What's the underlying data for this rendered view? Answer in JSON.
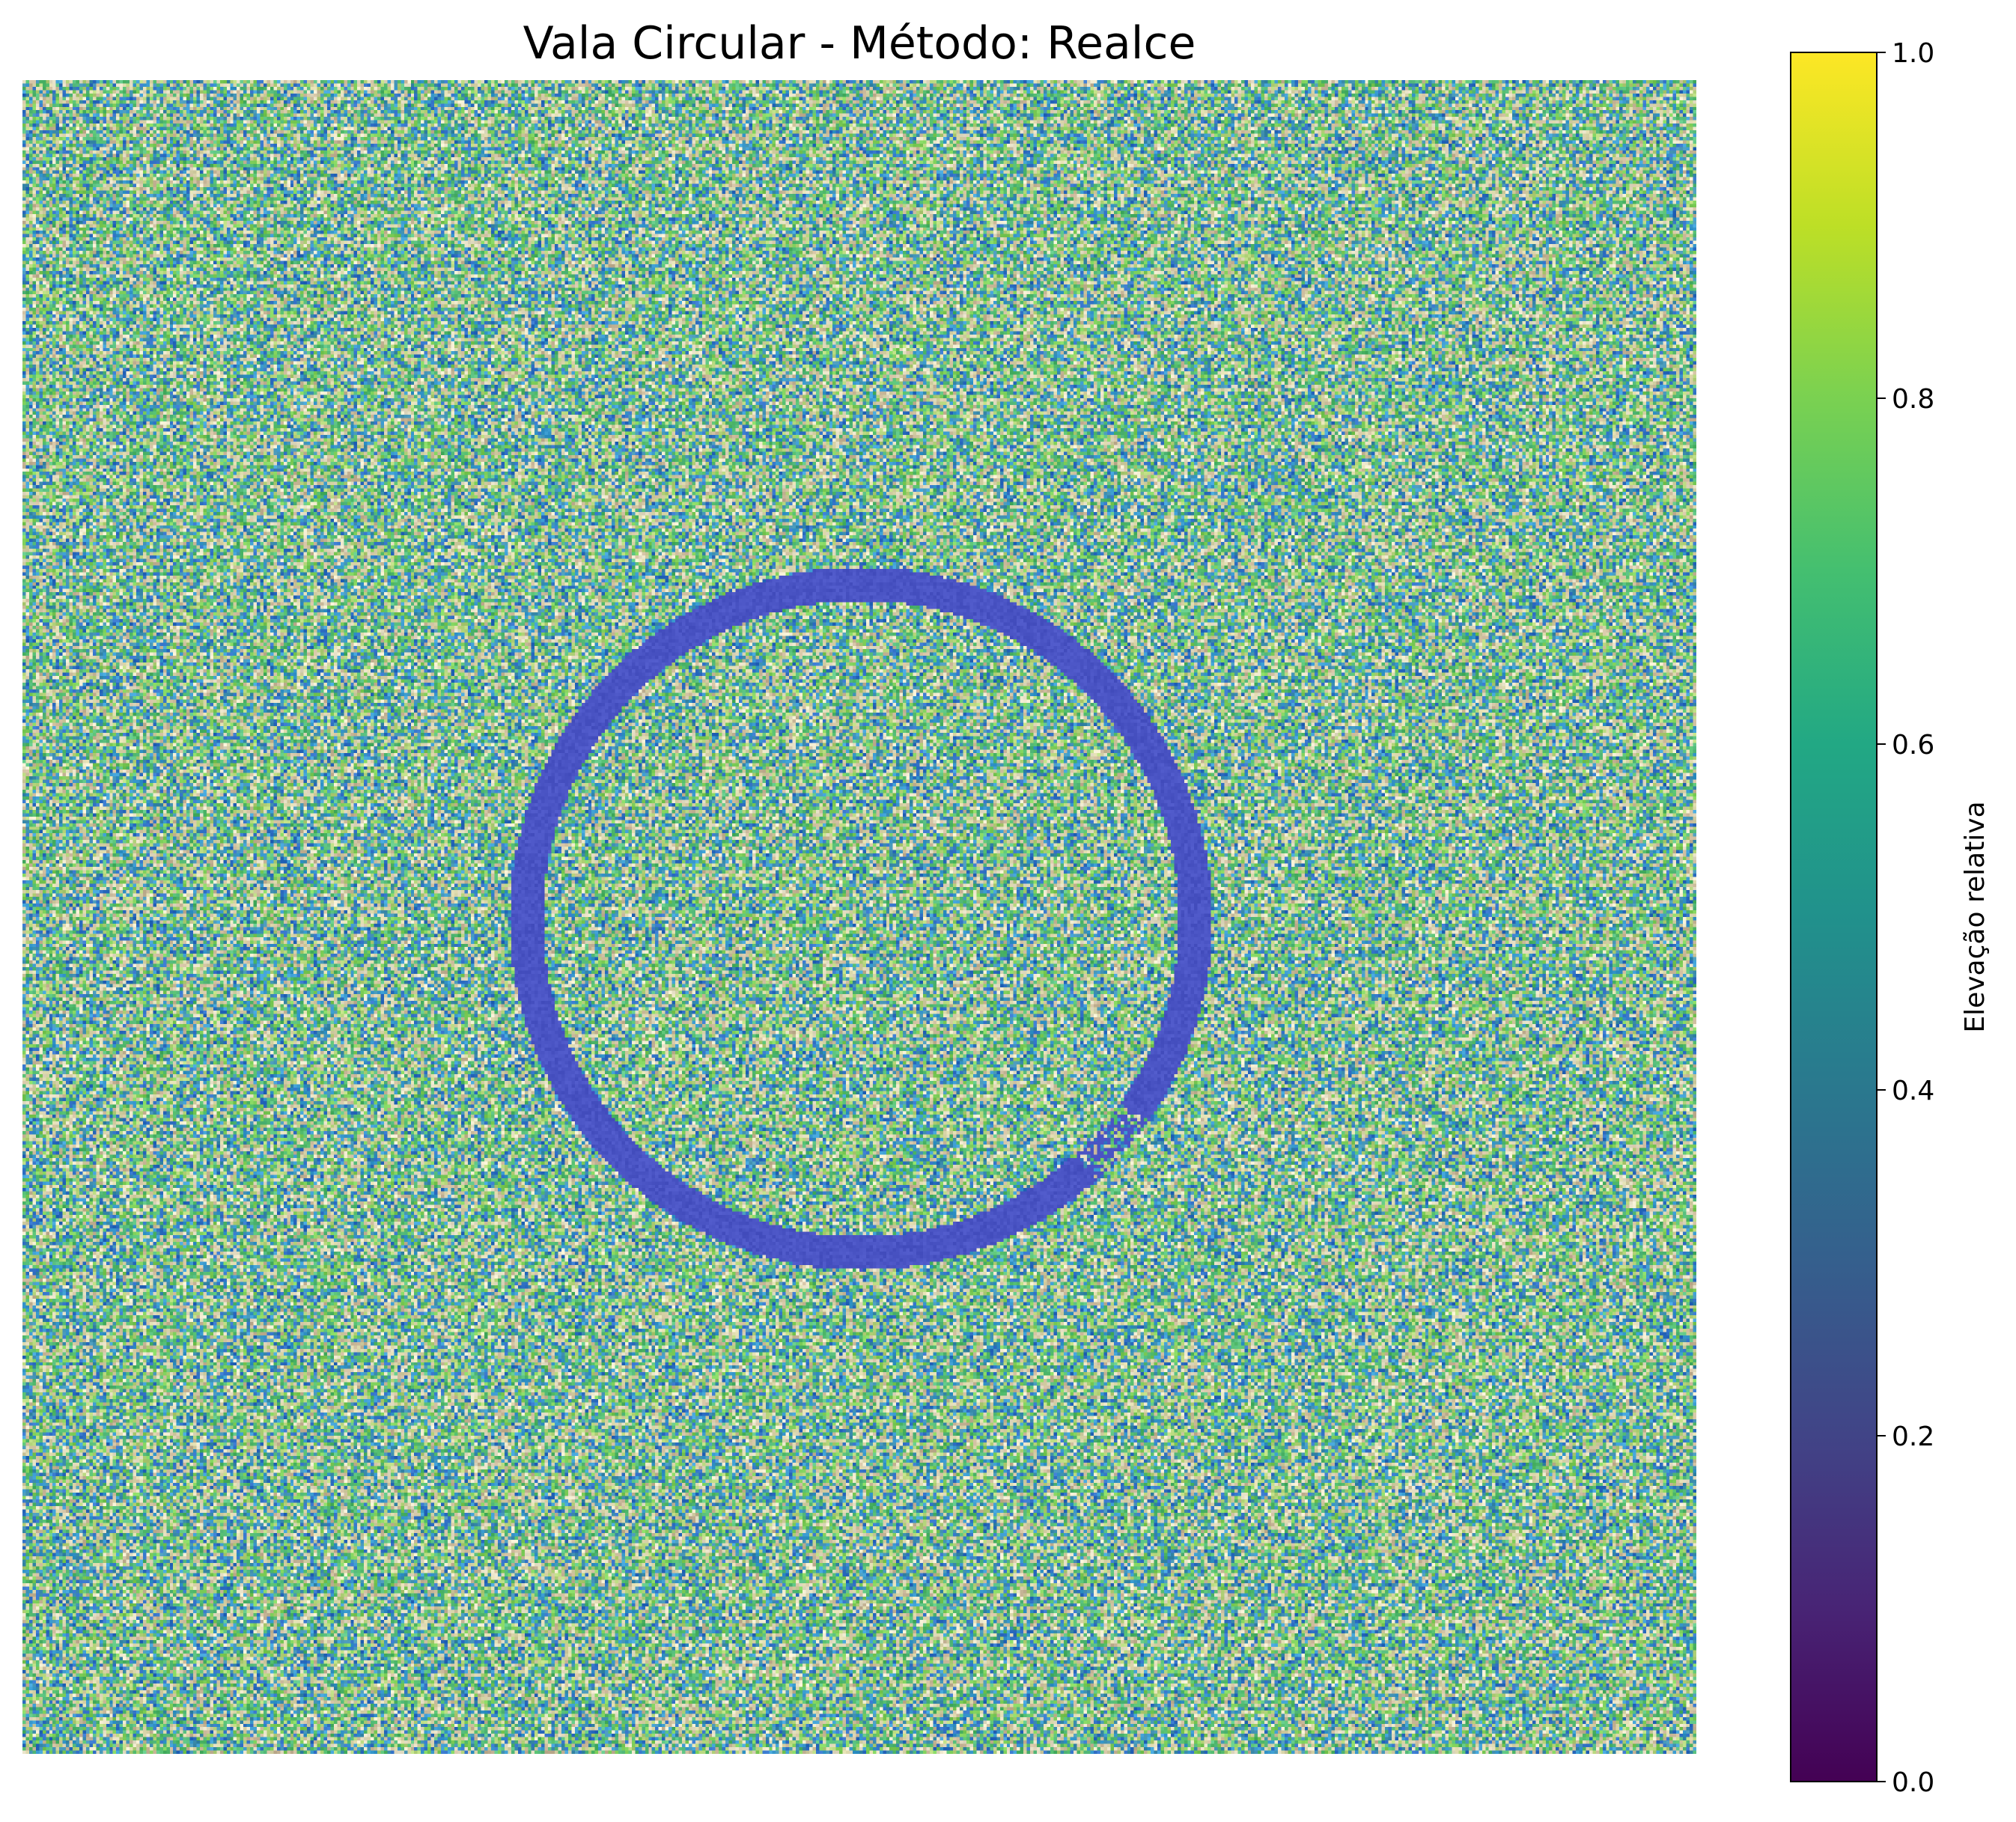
{
  "chart_data": {
    "type": "heatmap",
    "title": "Vala Circular - Método: Realce",
    "xlabel": "",
    "ylabel": "",
    "axes_visible": false,
    "colormap": "viridis",
    "grid_resolution": [
      500,
      500
    ],
    "background": {
      "description_values": "random noise, elevation roughly uniform 0.3 to 1.0",
      "value_range": [
        0.3,
        1.0
      ]
    },
    "feature": {
      "shape": "circular ditch",
      "center": [
        250,
        250
      ],
      "radius": 100,
      "width": 10,
      "value": 0.22,
      "gap_angle_range_deg": [
        35,
        48
      ],
      "gap_value_range": [
        0.15,
        0.95
      ]
    },
    "colorbar": {
      "label": "Elevação relativa",
      "range": [
        0.0,
        1.0
      ],
      "ticks": [
        0.0,
        0.2,
        0.4,
        0.6,
        0.8,
        1.0
      ],
      "tick_labels": [
        "0.0",
        "0.2",
        "0.4",
        "0.6",
        "0.8",
        "1.0"
      ],
      "placement": "right"
    },
    "colors": {
      "ditch": "#4a54c4",
      "noise_tints": [
        "#2f6fc4",
        "#3a9bd0",
        "#4fb86a",
        "#7ecf5a",
        "#b3d37a",
        "#d8d4a8",
        "#e8e2c8",
        "#c9b89a",
        "#5ac080",
        "#3f8fb0"
      ]
    }
  }
}
